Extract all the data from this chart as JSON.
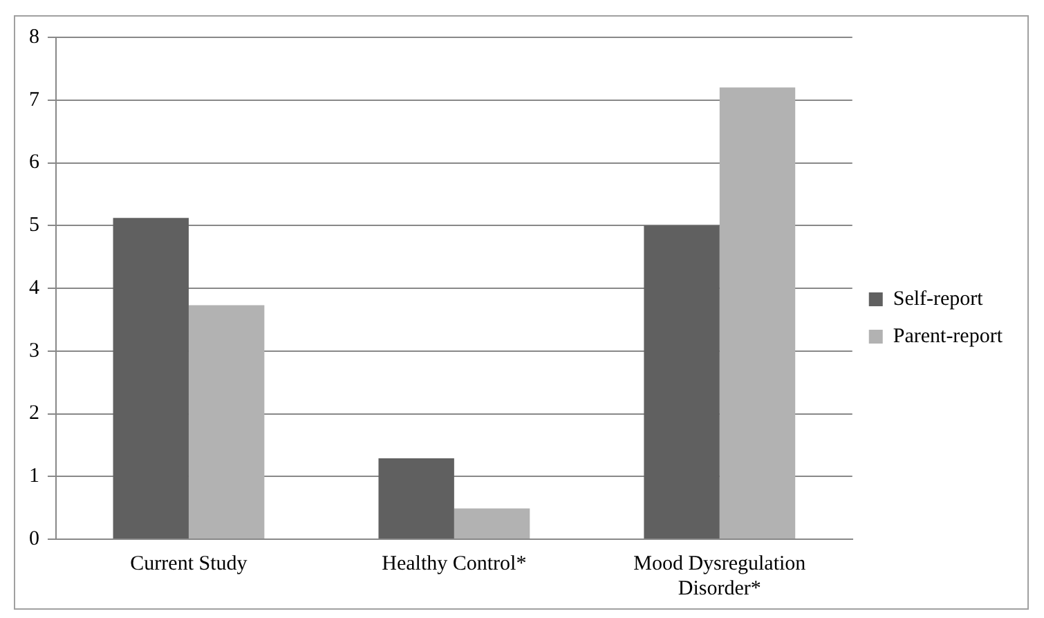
{
  "chart_data": {
    "type": "bar",
    "categories": [
      "Current Study",
      "Healthy Control*",
      "Mood Dysregulation Disorder*"
    ],
    "series": [
      {
        "name": "Self-report",
        "color": "#606060",
        "values": [
          5.12,
          1.29,
          5.0
        ]
      },
      {
        "name": "Parent-report",
        "color": "#b2b2b2",
        "values": [
          3.73,
          0.49,
          7.2
        ]
      }
    ],
    "ylim": [
      0,
      8
    ],
    "yticks": [
      0,
      1,
      2,
      3,
      4,
      5,
      6,
      7,
      8
    ],
    "grid": "y",
    "legend": "right"
  }
}
